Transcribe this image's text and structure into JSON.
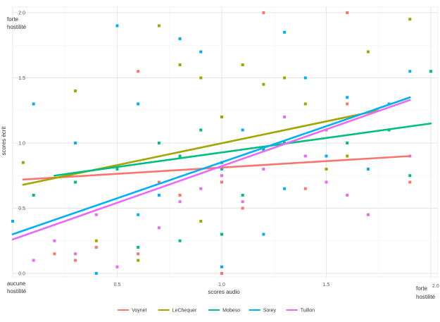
{
  "chart_data": {
    "type": "scatter",
    "xlabel": "scores audio",
    "ylabel": "scores écrit",
    "xlim": [
      0.0,
      2.0
    ],
    "ylim": [
      0.0,
      2.0
    ],
    "x_ticks": [
      0.5,
      1.0,
      1.5
    ],
    "y_ticks": [
      0.0,
      0.5,
      1.0,
      1.5,
      2.0
    ],
    "x_tick_labels": [
      "0.5",
      "1.0",
      "1.5"
    ],
    "y_tick_labels": [
      "0.0",
      "0.5",
      "1.0",
      "1.5",
      "2.0"
    ],
    "x_extra_tick_label": "2.0",
    "annotations": {
      "top_left": [
        "forte",
        "hostilité"
      ],
      "bottom_left": [
        "aucune",
        "hostilité"
      ],
      "bottom_right": [
        "forte",
        "hostilité"
      ]
    },
    "grid": true,
    "legend_position": "bottom",
    "series": [
      {
        "name": "Voynet",
        "color": "#F8766D",
        "points": [
          [
            0.2,
            0.15
          ],
          [
            0.3,
            0.1
          ],
          [
            0.6,
            0.15
          ],
          [
            0.7,
            0.7
          ],
          [
            0.8,
            0.6
          ],
          [
            1.0,
            0.7
          ],
          [
            1.1,
            0.5
          ],
          [
            1.2,
            2.0
          ],
          [
            1.4,
            0.65
          ],
          [
            1.5,
            1.1
          ],
          [
            1.6,
            2.0
          ],
          [
            1.9,
            0.7
          ],
          [
            1.6,
            1.3
          ],
          [
            0.6,
            1.55
          ],
          [
            0.4,
            0.2
          ],
          [
            1.0,
            0.0
          ]
        ],
        "fit": [
          [
            0.05,
            0.72
          ],
          [
            1.9,
            0.9
          ]
        ]
      },
      {
        "name": "LeChequer",
        "color": "#A3A500",
        "points": [
          [
            0.05,
            0.85
          ],
          [
            0.3,
            1.4
          ],
          [
            0.4,
            0.25
          ],
          [
            0.6,
            0.1
          ],
          [
            0.7,
            1.9
          ],
          [
            0.8,
            1.6
          ],
          [
            0.9,
            1.5
          ],
          [
            1.0,
            1.2
          ],
          [
            1.1,
            1.6
          ],
          [
            1.2,
            1.45
          ],
          [
            1.3,
            1.5
          ],
          [
            1.5,
            0.8
          ],
          [
            1.6,
            0.9
          ],
          [
            1.7,
            1.7
          ],
          [
            1.9,
            1.95
          ],
          [
            0.9,
            0.4
          ],
          [
            1.4,
            1.3
          ]
        ],
        "fit": [
          [
            0.05,
            0.68
          ],
          [
            1.75,
            1.25
          ]
        ]
      },
      {
        "name": "Mobeso",
        "color": "#00BF7D",
        "points": [
          [
            0.1,
            0.6
          ],
          [
            0.3,
            0.7
          ],
          [
            0.5,
            0.8
          ],
          [
            0.6,
            0.2
          ],
          [
            0.7,
            1.0
          ],
          [
            0.8,
            0.9
          ],
          [
            0.9,
            1.1
          ],
          [
            1.0,
            0.85
          ],
          [
            1.1,
            0.6
          ],
          [
            1.2,
            0.95
          ],
          [
            1.3,
            1.0
          ],
          [
            1.4,
            0.9
          ],
          [
            1.6,
            1.0
          ],
          [
            1.8,
            1.1
          ],
          [
            2.0,
            1.55
          ],
          [
            1.9,
            0.75
          ],
          [
            0.8,
            0.25
          ],
          [
            1.0,
            0.3
          ]
        ],
        "fit": [
          [
            0.2,
            0.75
          ],
          [
            2.0,
            1.15
          ]
        ]
      },
      {
        "name": "Sorey",
        "color": "#00B0F6",
        "points": [
          [
            0.0,
            0.4
          ],
          [
            0.1,
            1.3
          ],
          [
            0.3,
            1.0
          ],
          [
            0.4,
            0.0
          ],
          [
            0.5,
            1.9
          ],
          [
            0.6,
            1.3
          ],
          [
            0.7,
            0.6
          ],
          [
            0.8,
            1.8
          ],
          [
            0.9,
            1.7
          ],
          [
            1.0,
            0.8
          ],
          [
            1.1,
            1.1
          ],
          [
            1.2,
            0.3
          ],
          [
            1.3,
            1.85
          ],
          [
            1.4,
            1.5
          ],
          [
            1.5,
            0.9
          ],
          [
            1.6,
            1.35
          ],
          [
            1.7,
            0.8
          ],
          [
            1.8,
            1.3
          ],
          [
            1.9,
            1.55
          ],
          [
            0.6,
            0.45
          ],
          [
            1.0,
            0.05
          ],
          [
            1.3,
            0.65
          ]
        ],
        "fit": [
          [
            0.0,
            0.3
          ],
          [
            1.9,
            1.35
          ]
        ]
      },
      {
        "name": "Tuillon",
        "color": "#E76BF3",
        "points": [
          [
            0.1,
            0.1
          ],
          [
            0.2,
            0.25
          ],
          [
            0.3,
            0.15
          ],
          [
            0.5,
            0.05
          ],
          [
            0.7,
            0.35
          ],
          [
            0.9,
            0.65
          ],
          [
            1.0,
            0.75
          ],
          [
            1.1,
            0.55
          ],
          [
            1.2,
            0.8
          ],
          [
            1.3,
            1.2
          ],
          [
            1.4,
            0.9
          ],
          [
            1.5,
            0.7
          ],
          [
            1.6,
            0.6
          ],
          [
            1.7,
            0.45
          ],
          [
            1.9,
            0.9
          ],
          [
            0.4,
            0.45
          ],
          [
            0.8,
            0.55
          ]
        ],
        "fit": [
          [
            0.0,
            0.26
          ],
          [
            1.9,
            1.33
          ]
        ]
      }
    ]
  }
}
